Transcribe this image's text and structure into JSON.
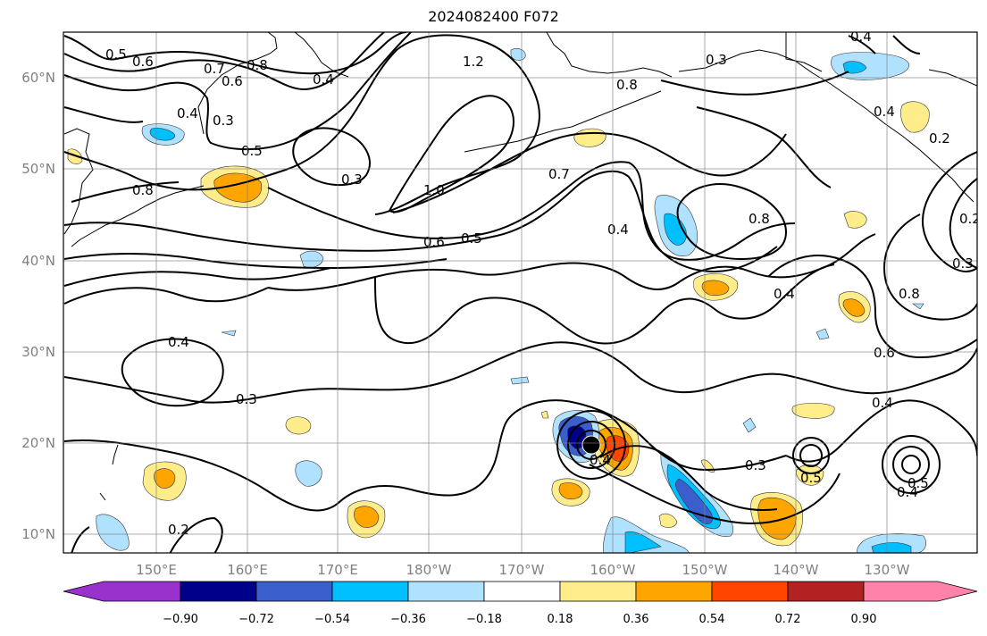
{
  "title": "2024082400 F072",
  "lon_ticks": [
    "150°E",
    "160°E",
    "170°E",
    "180°W",
    "170°W",
    "160°W",
    "150°W",
    "140°W",
    "130°W"
  ],
  "lat_ticks": [
    "60°N",
    "50°N",
    "40°N",
    "30°N",
    "20°N",
    "10°N"
  ],
  "colorbar": {
    "levels": [
      "−0.90",
      "−0.72",
      "−0.54",
      "−0.36",
      "−0.18",
      "0.18",
      "0.36",
      "0.54",
      "0.72",
      "0.90"
    ],
    "colors": [
      "#9932cc",
      "#00008b",
      "#3a5fcd",
      "#00bfff",
      "#b0e2ff",
      "#ffffff",
      "#ffec8b",
      "#ffa500",
      "#ff4500",
      "#b22222",
      "#ff82ab"
    ]
  },
  "contour_labels": [
    "0.5",
    "0.6",
    "0.7",
    "0.8",
    "0.6",
    "0.4",
    "0.4",
    "0.3",
    "0.5",
    "0.8",
    "1.2",
    "0.8",
    "0.3",
    "0.3",
    "1.0",
    "0.6",
    "0.5",
    "0.7",
    "0.4",
    "0.8",
    "0.4",
    "0.4",
    "0.2",
    "0.4",
    "0.3",
    "0.4",
    "0.8",
    "0.6",
    "0.4",
    "0.3",
    "0.2",
    "0.2",
    "0.4",
    "0.3",
    "0.5",
    "0.5",
    "0.4"
  ]
}
